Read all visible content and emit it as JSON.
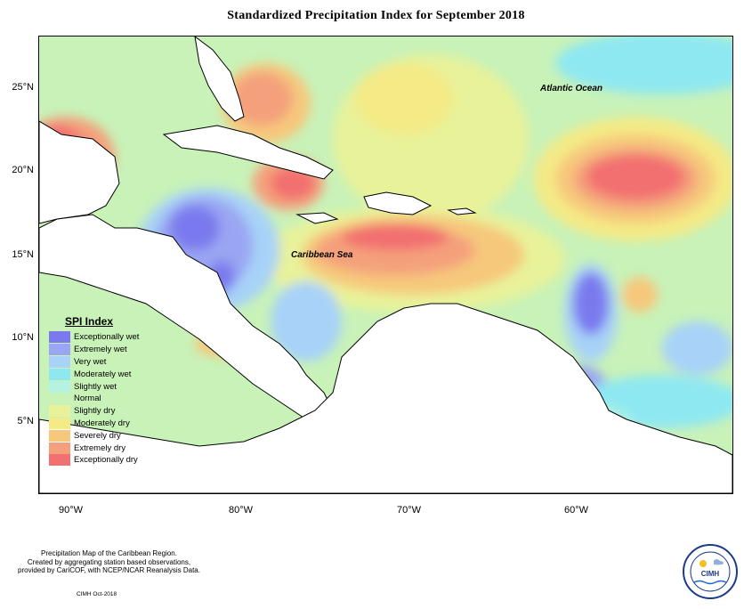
{
  "title": "Standardized Precipitation Index for September 2018",
  "ocean_labels": {
    "atlantic": "Atlantic Ocean",
    "caribbean": "Caribbean Sea"
  },
  "axes": {
    "lat_ticks": [
      "25°N",
      "20°N",
      "15°N",
      "10°N",
      "5°N"
    ],
    "lon_ticks": [
      "90°W",
      "80°W",
      "70°W",
      "60°W"
    ]
  },
  "legend": {
    "title": "SPI Index",
    "items": [
      {
        "label": "Exceptionally wet",
        "color": "#7a7aee"
      },
      {
        "label": "Extremely wet",
        "color": "#9aa6f2"
      },
      {
        "label": "Very wet",
        "color": "#a8d2f8"
      },
      {
        "label": "Moderately wet",
        "color": "#8ee8f2"
      },
      {
        "label": "Slightly wet",
        "color": "#b6f2e0"
      },
      {
        "label": "Normal",
        "color": "#c8f2b8"
      },
      {
        "label": "Slightly dry",
        "color": "#e8f29a"
      },
      {
        "label": "Moderately dry",
        "color": "#f4ea86"
      },
      {
        "label": "Severely dry",
        "color": "#f6c87c"
      },
      {
        "label": "Extremely dry",
        "color": "#f4a07c"
      },
      {
        "label": "Exceptionally dry",
        "color": "#f27070"
      }
    ]
  },
  "footer": {
    "line1": "Precipitation Map of the Caribbean Region.",
    "line2": "Created by aggregating station based observations,",
    "line3": "provided by CariCOF, with NCEP/NCAR Reanalysis Data.",
    "credit": "CIMH Oct-2018"
  },
  "logo": {
    "text": "CIMH"
  }
}
